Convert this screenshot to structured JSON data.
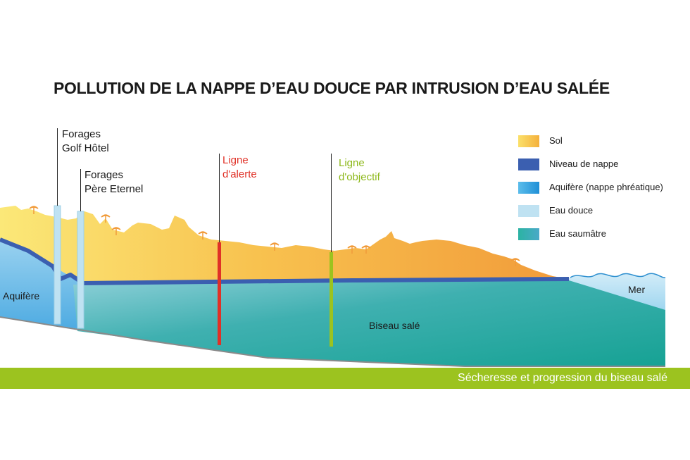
{
  "title": "POLLUTION DE LA NAPPE D’EAU DOUCE PAR INTRUSION D’EAU SALÉE",
  "labels": {
    "forages_golf": [
      "Forages",
      "Golf Hôtel"
    ],
    "forages_pere": [
      "Forages",
      "Père Eternel"
    ],
    "ligne_alerte": [
      "Ligne",
      "d'alerte"
    ],
    "ligne_objectif": [
      "Ligne",
      "d'objectif"
    ],
    "aquifere": "Aquifère",
    "mer": "Mer",
    "biseau": "Biseau salé"
  },
  "legend": [
    {
      "label": "Sol",
      "color": "#f4b03c"
    },
    {
      "label": "Niveau de nappe",
      "color": "#3b5fb0"
    },
    {
      "label": "Aquifère (nappe phréatique)",
      "color": "#3aa0de"
    },
    {
      "label": "Eau douce",
      "color": "#bfe2f2"
    },
    {
      "label": "Eau saumâtre",
      "color": "#1ea89a"
    }
  ],
  "colors": {
    "alerte": "#e03127",
    "objectif": "#9cc31f",
    "footer": "#9cc31f"
  },
  "footer": "Sécheresse et progression du biseau salé"
}
